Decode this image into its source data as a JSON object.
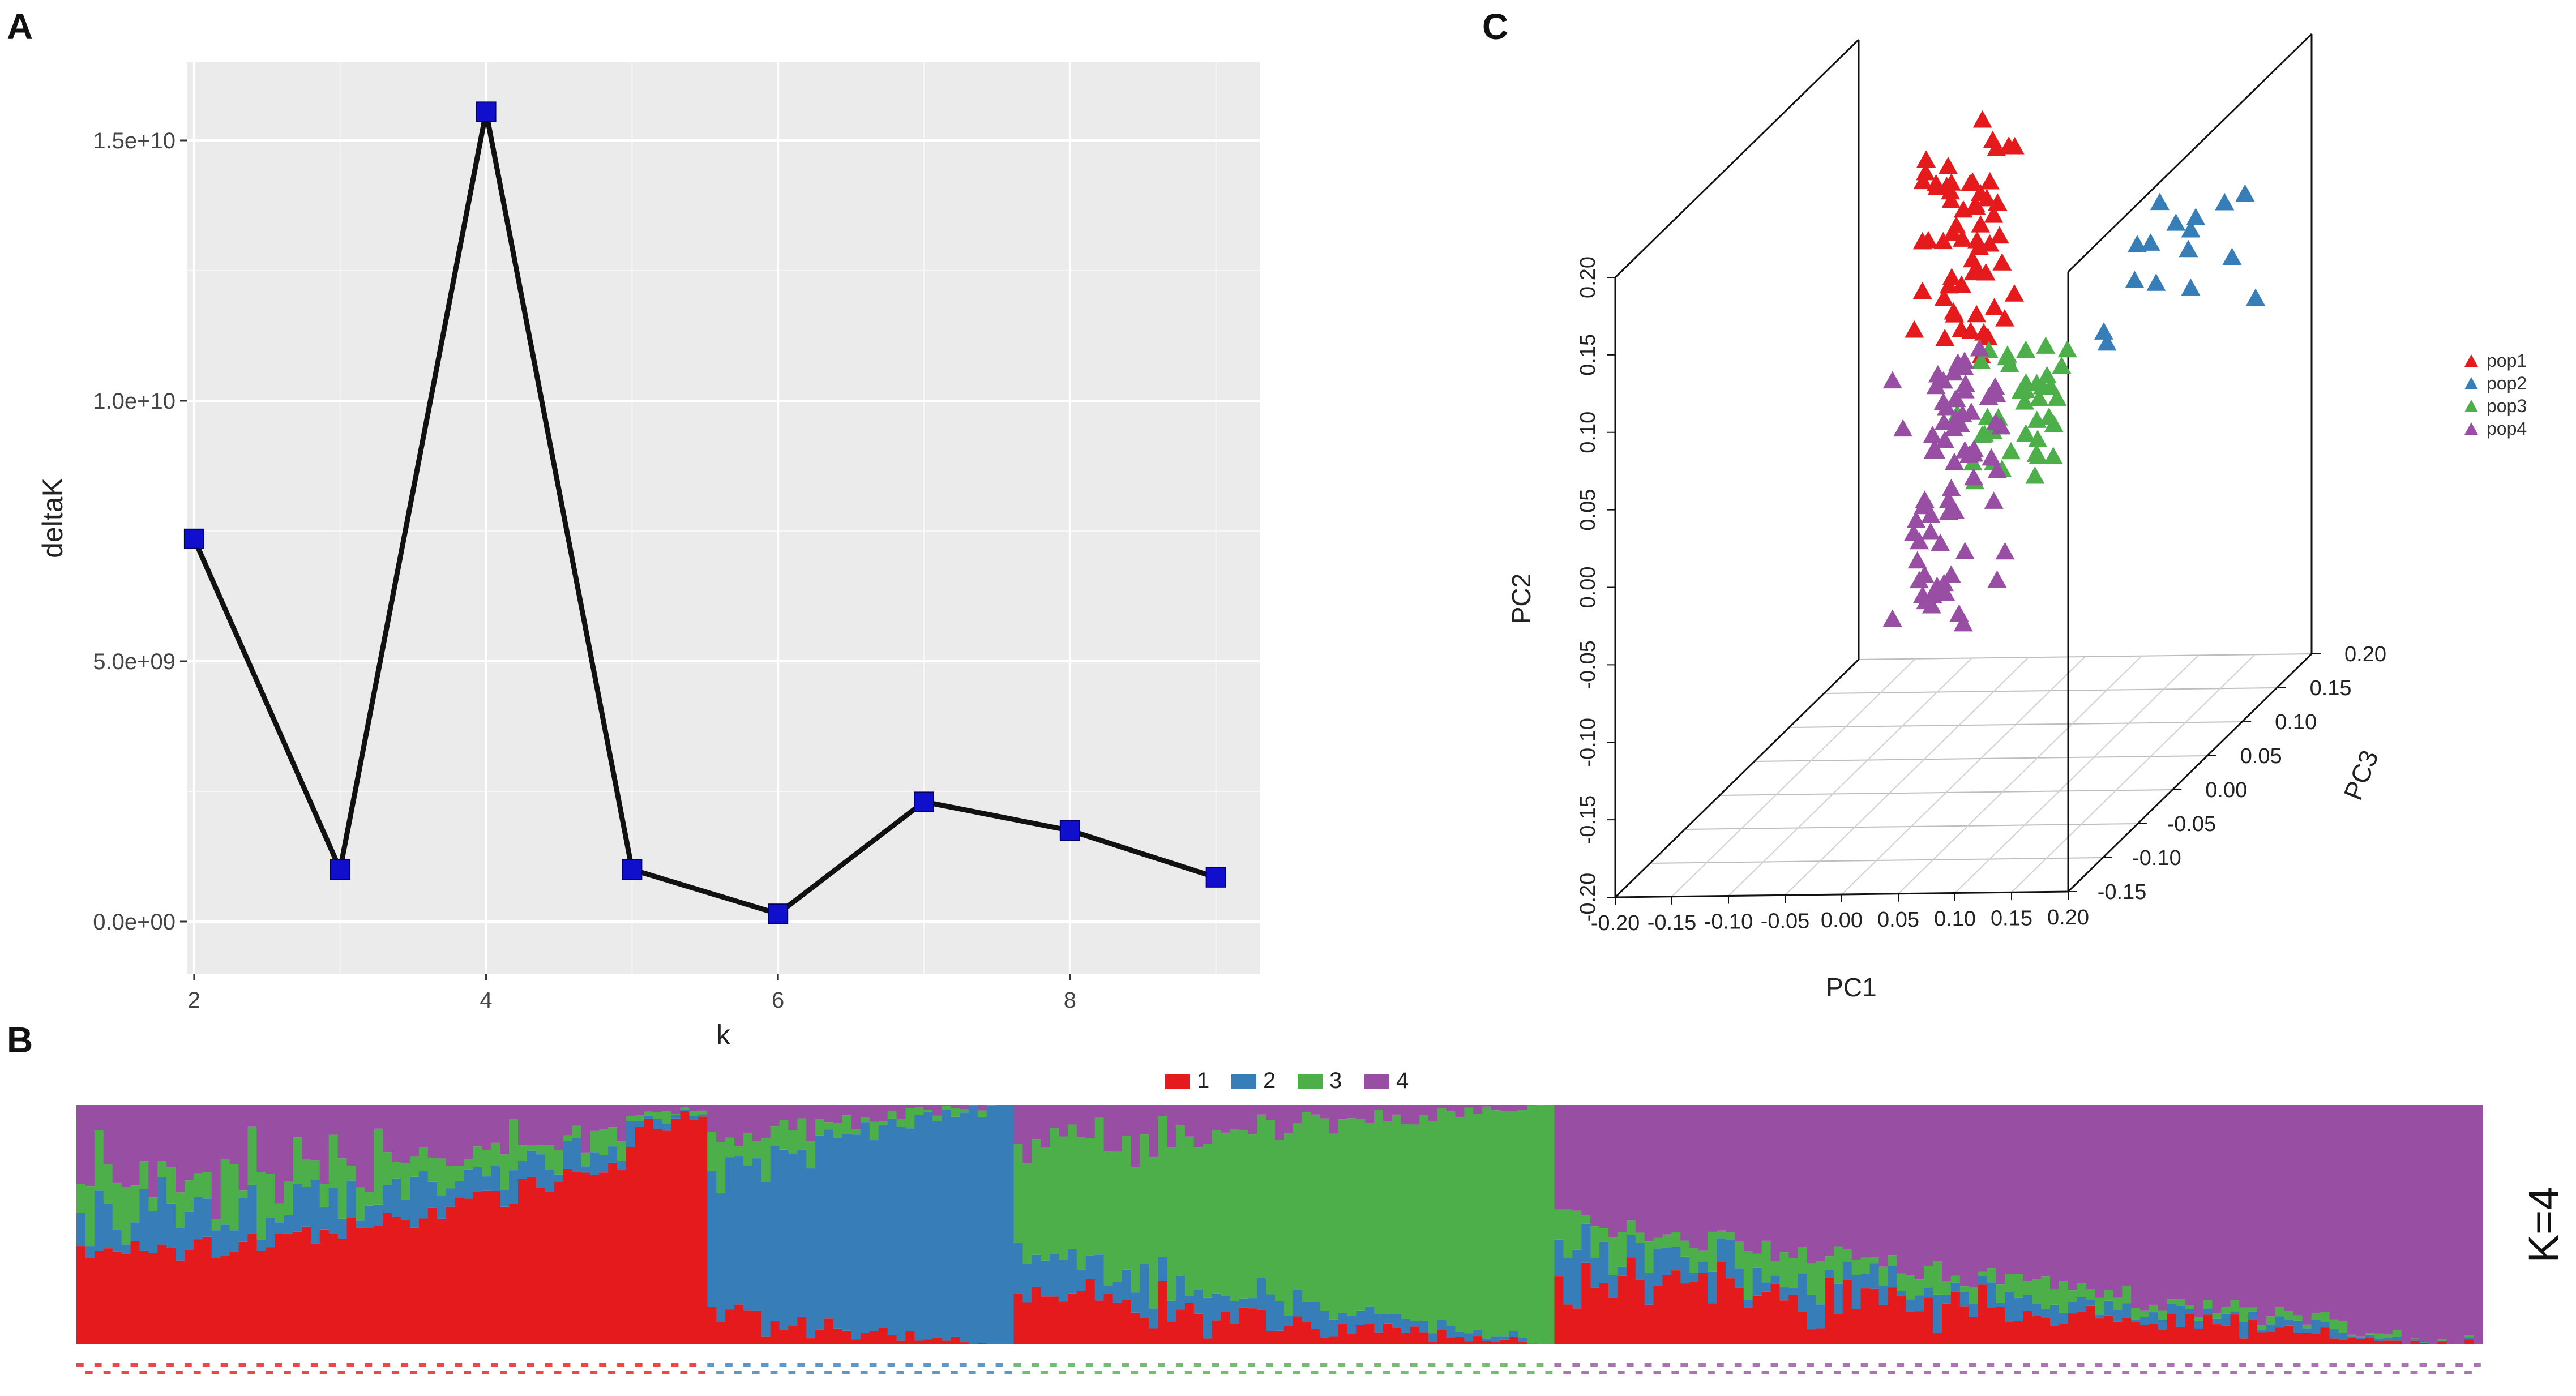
{
  "panels": {
    "a": "A",
    "b": "B",
    "c": "C"
  },
  "colors": {
    "pop1": "#e41a1c",
    "pop2": "#377eb8",
    "pop3": "#4daf4a",
    "pop4": "#984ea3",
    "marker": "#1010cc"
  },
  "chart_data": [
    {
      "id": "A",
      "type": "line",
      "xlabel": "k",
      "ylabel": "deltaK",
      "x": [
        2,
        3,
        4,
        5,
        6,
        7,
        8,
        9
      ],
      "y": [
        7350000000.0,
        1000000000.0,
        15550000000.0,
        1000000000.0,
        150000000.0,
        2300000000.0,
        1750000000.0,
        850000000.0
      ],
      "xlim": [
        1.95,
        9.3
      ],
      "ylim": [
        -1000000000.0,
        16500000000.0
      ],
      "xticks": [
        2,
        4,
        6,
        8
      ],
      "xtick_labels": [
        "2",
        "4",
        "6",
        "8"
      ],
      "yticks": [
        0,
        5000000000.0,
        10000000000.0,
        15000000000.0
      ],
      "ytick_labels": [
        "0.0e+00",
        "5.0e+09",
        "1.0e+10",
        "1.5e+10"
      ],
      "grid": true
    },
    {
      "id": "B",
      "type": "bar",
      "subtype": "stacked-admixture",
      "legend": [
        "1",
        "2",
        "3",
        "4"
      ],
      "side_label": "K=4",
      "groups": [
        {
          "name": "pop1",
          "n": 70,
          "dominant": "1"
        },
        {
          "name": "pop2",
          "n": 34,
          "dominant": "2"
        },
        {
          "name": "pop3",
          "n": 60,
          "dominant": "3"
        },
        {
          "name": "pop4",
          "n": 103,
          "dominant": "4"
        }
      ],
      "ylim": [
        0,
        1
      ]
    },
    {
      "id": "C",
      "type": "scatter",
      "subtype": "3d-pca",
      "xlabel": "PC1",
      "ylabel": "PC2",
      "zlabel": "PC3",
      "xticks": [
        -0.2,
        -0.15,
        -0.1,
        -0.05,
        0,
        0.05,
        0.1,
        0.15,
        0.2
      ],
      "xtick_labels": [
        "-0.20",
        "-0.15",
        "-0.10",
        "-0.05",
        "0.00",
        "0.05",
        "0.10",
        "0.15",
        "0.20"
      ],
      "yticks": [
        -0.2,
        -0.15,
        -0.1,
        -0.05,
        0,
        0.05,
        0.1,
        0.15,
        0.2
      ],
      "ytick_labels": [
        "-0.20",
        "-0.15",
        "-0.10",
        "-0.05",
        "0.00",
        "0.05",
        "0.10",
        "0.15",
        "0.20"
      ],
      "zticks": [
        -0.15,
        -0.1,
        -0.05,
        0,
        0.05,
        0.1,
        0.15,
        0.2
      ],
      "ztick_labels": [
        "-0.15",
        "-0.10",
        "-0.05",
        "0.00",
        "0.05",
        "0.10",
        "0.15",
        "0.20"
      ],
      "legend": [
        "pop1",
        "pop2",
        "pop3",
        "pop4"
      ],
      "series": [
        {
          "name": "pop1",
          "count": 60,
          "pc1": [
            -0.02,
            0.03
          ],
          "pc2": [
            0.07,
            0.21
          ],
          "pc3": [
            -0.02,
            0.06
          ]
        },
        {
          "name": "pop2",
          "count": 16,
          "pc1": [
            0.1,
            0.2
          ],
          "pc2": [
            0.06,
            0.14
          ],
          "pc3": [
            0.05,
            0.15
          ]
        },
        {
          "name": "pop3",
          "count": 40,
          "pc1": [
            0.0,
            0.08
          ],
          "pc2": [
            0.0,
            0.07
          ],
          "pc3": [
            0.0,
            0.06
          ]
        },
        {
          "name": "pop4",
          "count": 70,
          "pc1": [
            -0.03,
            0.04
          ],
          "pc2": [
            -0.08,
            0.08
          ],
          "pc3": [
            -0.05,
            0.05
          ]
        }
      ]
    }
  ]
}
